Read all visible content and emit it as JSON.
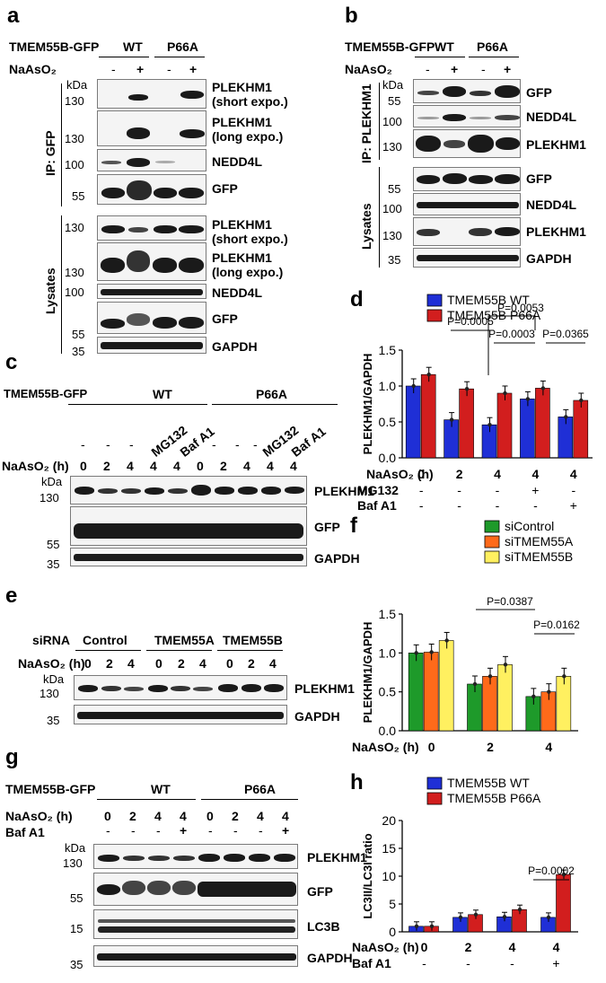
{
  "panels": {
    "a": "a",
    "b": "b",
    "c": "c",
    "d": "d",
    "e": "e",
    "f": "f",
    "g": "g",
    "h": "h"
  },
  "common": {
    "construct": "TMEM55B-GFP",
    "wt": "WT",
    "p66a": "P66A",
    "naaso2": "NaAsO₂",
    "naaso2_h": "NaAsO₂ (h)",
    "kda": "kDa",
    "minus": "-",
    "plus": "+",
    "ip_gfp": "IP: GFP",
    "ip_plekhm1": "IP: PLEKHM1",
    "lysates": "Lysates"
  },
  "labels": {
    "plekhm1": "PLEKHM1",
    "short": "(short expo.)",
    "long": "(long expo.)",
    "nedd4l": "NEDD4L",
    "gfp": "GFP",
    "gapdh": "GAPDH",
    "lc3b": "LC3B",
    "mg132": "MG132",
    "bafa1": "Baf A1",
    "bafa1_row": "Baf A1",
    "mg132_row": "MG132",
    "sirna": "siRNA",
    "control": "Control",
    "tmem55a": "TMEM55A",
    "tmem55b": "TMEM55B"
  },
  "mw": {
    "m130": "130",
    "m100": "100",
    "m55": "55",
    "m35": "35",
    "m15": "15"
  },
  "times": {
    "t0": "0",
    "t2": "2",
    "t4": "4"
  },
  "chart_data": [
    {
      "panel": "d",
      "type": "bar",
      "ylabel": "PLEKHM1/GAPDH",
      "ylim": [
        0,
        1.5
      ],
      "yticks": [
        "0.0",
        "0.5",
        "1.0",
        "1.5"
      ],
      "categories": [
        {
          "naaso2": "0",
          "mg132": "-",
          "bafa1": "-"
        },
        {
          "naaso2": "2",
          "mg132": "-",
          "bafa1": "-"
        },
        {
          "naaso2": "4",
          "mg132": "-",
          "bafa1": "-"
        },
        {
          "naaso2": "4",
          "mg132": "+",
          "bafa1": "-"
        },
        {
          "naaso2": "4",
          "mg132": "-",
          "bafa1": "+"
        }
      ],
      "series": [
        {
          "name": "TMEM55B WT",
          "color": "#1f2fd6",
          "values": [
            1.0,
            0.53,
            0.46,
            0.82,
            0.57
          ]
        },
        {
          "name": "TMEM55B P66A",
          "color": "#d21e1e",
          "values": [
            1.16,
            0.96,
            0.9,
            0.97,
            0.8
          ]
        }
      ],
      "annotations": [
        "P=0.0005",
        "P=0.0053",
        "P=0.0003",
        "P=0.0365"
      ]
    },
    {
      "panel": "f",
      "type": "bar",
      "ylabel": "PLEKHM1/GAPDH",
      "ylim": [
        0,
        1.5
      ],
      "yticks": [
        "0.0",
        "0.5",
        "1.0",
        "1.5"
      ],
      "categories": [
        "0",
        "2",
        "4"
      ],
      "series": [
        {
          "name": "siControl",
          "color": "#1e9a2a",
          "values": [
            1.0,
            0.6,
            0.44
          ]
        },
        {
          "name": "siTMEM55A",
          "color": "#ff6a1a",
          "values": [
            1.01,
            0.7,
            0.5
          ]
        },
        {
          "name": "siTMEM55B",
          "color": "#fff060",
          "values": [
            1.16,
            0.85,
            0.7
          ]
        }
      ],
      "annotations": [
        "P=0.0387",
        "P=0.0162"
      ]
    },
    {
      "panel": "h",
      "type": "bar",
      "ylabel": "LC3II/LC3I ratio",
      "ylim": [
        0,
        20
      ],
      "yticks": [
        "0",
        "5",
        "10",
        "15",
        "20"
      ],
      "categories": [
        {
          "naaso2": "0",
          "bafa1": "-"
        },
        {
          "naaso2": "2",
          "bafa1": "-"
        },
        {
          "naaso2": "4",
          "bafa1": "-"
        },
        {
          "naaso2": "4",
          "bafa1": "+"
        }
      ],
      "series": [
        {
          "name": "TMEM55B WT",
          "color": "#1f2fd6",
          "values": [
            1.0,
            2.6,
            2.7,
            2.6
          ]
        },
        {
          "name": "TMEM55B P66A",
          "color": "#d21e1e",
          "values": [
            1.0,
            3.1,
            4.0,
            10.3
          ]
        }
      ],
      "annotations": [
        "P=0.0002"
      ]
    }
  ]
}
